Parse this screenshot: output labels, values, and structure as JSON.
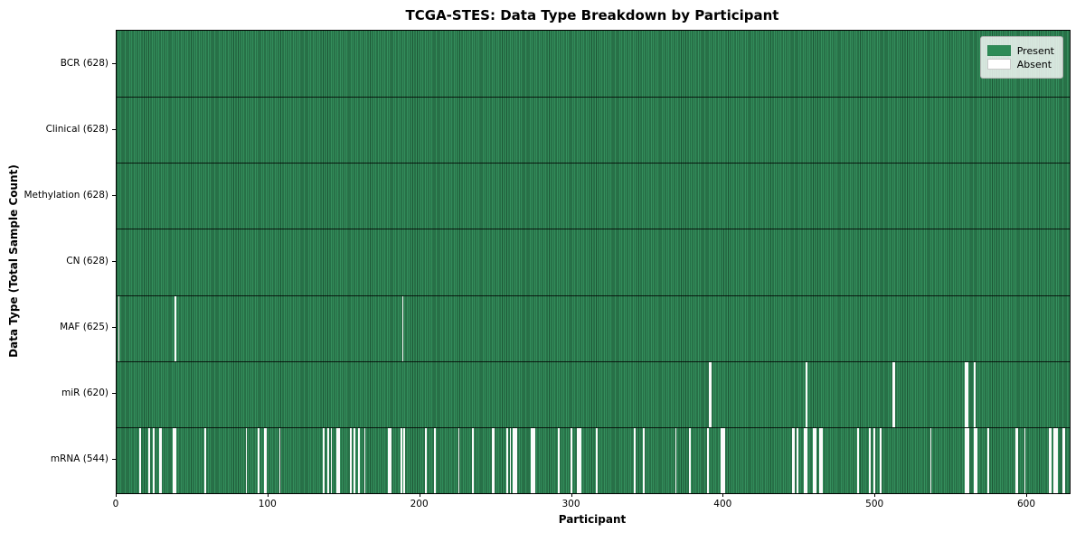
{
  "title": "TCGA-STES: Data Type Breakdown by Participant",
  "chart_data": {
    "type": "heatmap",
    "title": "TCGA-STES: Data Type Breakdown by Participant",
    "xlabel": "Participant",
    "ylabel": "Data Type (Total Sample Count)",
    "x_ticks": [
      0,
      100,
      200,
      300,
      400,
      500,
      600
    ],
    "xlim": [
      0,
      628
    ],
    "n_participants": 628,
    "grid": false,
    "legend": {
      "position": "upper right",
      "entries": [
        {
          "label": "Present",
          "color": "#2e8b57"
        },
        {
          "label": "Absent",
          "color": "#ffffff"
        }
      ]
    },
    "colors": {
      "present": "#2e8b57",
      "absent": "#ffffff",
      "bar_edge": "#1b4d30",
      "row_divider": "#1a1a1a",
      "legend_background": "#eef1ec"
    },
    "rows": [
      {
        "data_type": "BCR",
        "label": "BCR (628)",
        "present_count": 628,
        "absent_count": 0,
        "absent_participants": []
      },
      {
        "data_type": "Clinical",
        "label": "Clinical (628)",
        "present_count": 628,
        "absent_count": 0,
        "absent_participants": []
      },
      {
        "data_type": "Methylation",
        "label": "Methylation (628)",
        "present_count": 628,
        "absent_count": 0,
        "absent_participants": []
      },
      {
        "data_type": "CN",
        "label": "CN (628)",
        "present_count": 628,
        "absent_count": 0,
        "absent_participants": []
      },
      {
        "data_type": "MAF",
        "label": "MAF (625)",
        "present_count": 625,
        "absent_count": 3,
        "absent_participants": [
          1,
          38,
          188
        ]
      },
      {
        "data_type": "miR",
        "label": "miR (620)",
        "present_count": 620,
        "absent_count": 8,
        "absent_participants": [
          390,
          391,
          454,
          511,
          512,
          559,
          560,
          565
        ]
      },
      {
        "data_type": "mRNA",
        "label": "mRNA (544)",
        "present_count": 544,
        "absent_count": 84,
        "absent_participants": [
          15,
          21,
          24,
          28,
          29,
          37,
          38,
          58,
          85,
          93,
          97,
          98,
          107,
          136,
          139,
          141,
          145,
          146,
          154,
          156,
          159,
          163,
          179,
          180,
          187,
          189,
          203,
          209,
          225,
          234,
          247,
          248,
          257,
          259,
          261,
          262,
          263,
          273,
          274,
          275,
          291,
          299,
          303,
          304,
          305,
          316,
          341,
          347,
          368,
          377,
          389,
          398,
          399,
          400,
          445,
          446,
          448,
          453,
          454,
          459,
          460,
          463,
          464,
          488,
          496,
          499,
          503,
          536,
          559,
          560,
          561,
          565,
          566,
          574,
          592,
          593,
          598,
          614,
          615,
          617,
          618,
          619,
          623,
          624
        ]
      }
    ]
  }
}
